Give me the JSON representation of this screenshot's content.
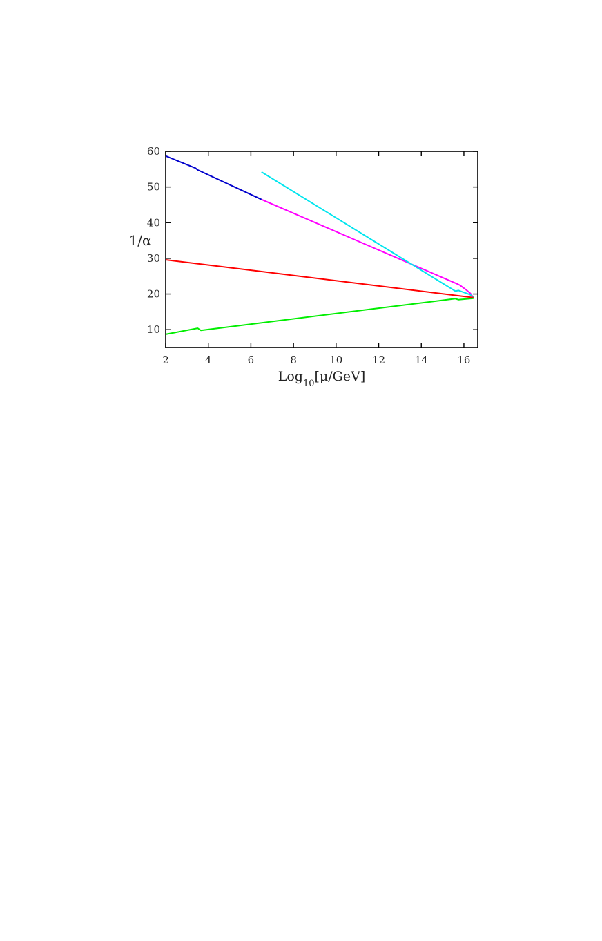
{
  "chart_data": {
    "type": "line",
    "xlabel": "Log10[μ/GeV]",
    "ylabel": "1/α",
    "xlim": [
      2,
      16.65
    ],
    "ylim": [
      5,
      60
    ],
    "xticks": [
      "2",
      "4",
      "6",
      "8",
      "10",
      "12",
      "14",
      "16"
    ],
    "yticks": [
      "10",
      "20",
      "30",
      "40",
      "50",
      "60"
    ],
    "grid": false,
    "series": [
      {
        "color": "#0000cc",
        "points": [
          [
            2.0,
            58.7
          ],
          [
            3.4,
            55.3
          ],
          [
            3.5,
            54.8
          ],
          [
            6.5,
            46.5
          ]
        ]
      },
      {
        "color": "#ff00ff",
        "points": [
          [
            6.5,
            46.5
          ],
          [
            15.7,
            22.8
          ],
          [
            15.8,
            22.5
          ],
          [
            16.1,
            21.2
          ],
          [
            16.3,
            20.2
          ],
          [
            16.45,
            19.0
          ]
        ]
      },
      {
        "color": "#00e5ee",
        "points": [
          [
            6.5,
            54.2
          ],
          [
            15.6,
            20.8
          ],
          [
            15.75,
            21.0
          ],
          [
            16.3,
            19.8
          ],
          [
            16.45,
            19.0
          ]
        ]
      },
      {
        "color": "#ff0000",
        "points": [
          [
            2.0,
            29.6
          ],
          [
            16.45,
            19.0
          ]
        ]
      },
      {
        "color": "#00ee00",
        "points": [
          [
            2.0,
            8.7
          ],
          [
            3.5,
            10.4
          ],
          [
            3.65,
            9.8
          ],
          [
            15.6,
            18.7
          ],
          [
            15.75,
            18.4
          ],
          [
            16.1,
            18.6
          ],
          [
            16.45,
            18.8
          ]
        ]
      }
    ]
  }
}
